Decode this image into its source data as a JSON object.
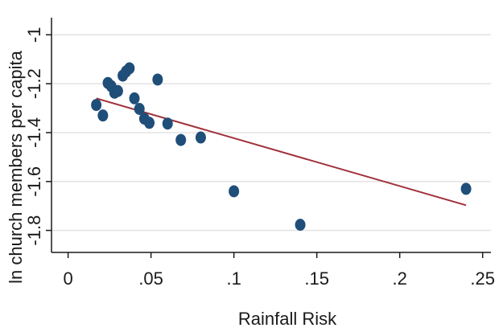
{
  "chart_data": {
    "type": "scatter",
    "xlabel": "Rainfall Risk",
    "ylabel": "ln church members per capita",
    "xlim": [
      -0.01,
      0.255
    ],
    "ylim": [
      -1.89,
      -0.93
    ],
    "xticks": [
      {
        "value": 0,
        "label": "0"
      },
      {
        "value": 0.05,
        "label": ".05"
      },
      {
        "value": 0.1,
        "label": ".1"
      },
      {
        "value": 0.15,
        "label": ".15"
      },
      {
        "value": 0.2,
        "label": ".2"
      },
      {
        "value": 0.25,
        "label": ".25"
      }
    ],
    "yticks": [
      {
        "value": -1.8,
        "label": "-1.8"
      },
      {
        "value": -1.6,
        "label": "-1.6"
      },
      {
        "value": -1.4,
        "label": "-1.4"
      },
      {
        "value": -1.2,
        "label": "-1.2"
      },
      {
        "value": -1.0,
        "label": "-1"
      }
    ],
    "grid": true,
    "points": [
      {
        "x": 0.017,
        "y": -1.287
      },
      {
        "x": 0.021,
        "y": -1.33
      },
      {
        "x": 0.024,
        "y": -1.197
      },
      {
        "x": 0.026,
        "y": -1.21
      },
      {
        "x": 0.028,
        "y": -1.237
      },
      {
        "x": 0.03,
        "y": -1.23
      },
      {
        "x": 0.033,
        "y": -1.167
      },
      {
        "x": 0.035,
        "y": -1.15
      },
      {
        "x": 0.037,
        "y": -1.137
      },
      {
        "x": 0.04,
        "y": -1.26
      },
      {
        "x": 0.043,
        "y": -1.303
      },
      {
        "x": 0.046,
        "y": -1.343
      },
      {
        "x": 0.049,
        "y": -1.36
      },
      {
        "x": 0.054,
        "y": -1.183
      },
      {
        "x": 0.06,
        "y": -1.363
      },
      {
        "x": 0.068,
        "y": -1.43
      },
      {
        "x": 0.08,
        "y": -1.42
      },
      {
        "x": 0.1,
        "y": -1.64
      },
      {
        "x": 0.14,
        "y": -1.777
      },
      {
        "x": 0.24,
        "y": -1.63
      }
    ],
    "fit_line": {
      "x": [
        0.017,
        0.24
      ],
      "y": [
        -1.26,
        -1.697
      ]
    },
    "colors": {
      "points": "#1f4e79",
      "fit_line": "#a0303a",
      "grid": "#e3e3e3",
      "axis": "#1a1a1a"
    }
  }
}
